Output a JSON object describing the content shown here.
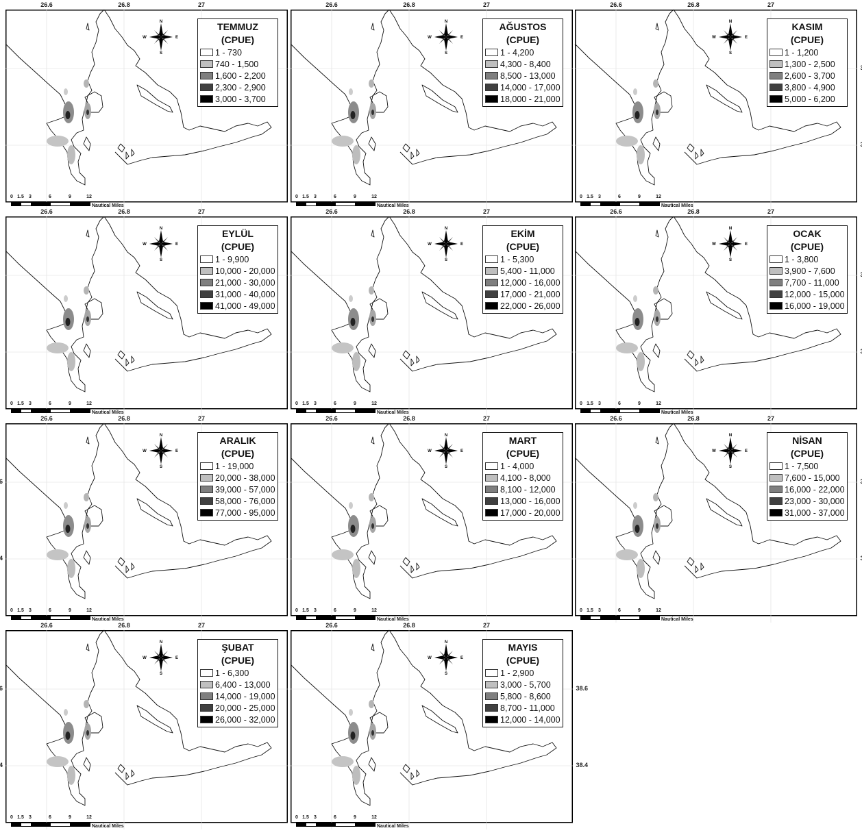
{
  "axes": {
    "lon_ticks": [
      "26.6",
      "26.8",
      "27"
    ],
    "lat_ticks": [
      "38.6",
      "38.4"
    ],
    "left_partial_ticks": [
      "6",
      "4"
    ]
  },
  "compass": {
    "n": "N",
    "s": "S",
    "e": "E",
    "w": "W"
  },
  "scale": {
    "ticks": [
      "0",
      "1.5",
      "3",
      "6",
      "9",
      "12"
    ],
    "unit": "Nautical Miles"
  },
  "legend_colors": [
    "#ffffff",
    "#bfbfbf",
    "#7f7f7f",
    "#404040",
    "#000000"
  ],
  "panels": [
    {
      "month": "TEMMUZ",
      "measure": "(CPUE)",
      "classes": [
        "1 - 730",
        "740 - 1,500",
        "1,600 - 2,200",
        "2,300 - 2,900",
        "3,000 - 3,700"
      ],
      "show_left_ticks": false
    },
    {
      "month": "AĞUSTOS",
      "measure": "(CPUE)",
      "classes": [
        "1 - 4,200",
        "4,300 - 8,400",
        "8,500 - 13,000",
        "14,000 - 17,000",
        "18,000 - 21,000"
      ],
      "show_left_ticks": false
    },
    {
      "month": "KASIM",
      "measure": "(CPUE)",
      "classes": [
        "1 - 1,200",
        "1,300 - 2,500",
        "2,600 - 3,700",
        "3,800 - 4,900",
        "5,000 - 6,200"
      ],
      "show_left_ticks": false
    },
    {
      "month": "EYLÜL",
      "measure": "(CPUE)",
      "classes": [
        "1 - 9,900",
        "10,000 - 20,000",
        "21,000 - 30,000",
        "31,000 - 40,000",
        "41,000 - 49,000"
      ],
      "show_left_ticks": false
    },
    {
      "month": "EKİM",
      "measure": "(CPUE)",
      "classes": [
        "1 - 5,300",
        "5,400 - 11,000",
        "12,000 - 16,000",
        "17,000 - 21,000",
        "22,000 - 26,000"
      ],
      "show_left_ticks": false
    },
    {
      "month": "OCAK",
      "measure": "(CPUE)",
      "classes": [
        "1 - 3,800",
        "3,900 - 7,600",
        "7,700 - 11,000",
        "12,000 - 15,000",
        "16,000 - 19,000"
      ],
      "show_left_ticks": false
    },
    {
      "month": "ARALIK",
      "measure": "(CPUE)",
      "classes": [
        "1 - 19,000",
        "20,000 - 38,000",
        "39,000 - 57,000",
        "58,000 - 76,000",
        "77,000 - 95,000"
      ],
      "show_left_ticks": true
    },
    {
      "month": "MART",
      "measure": "(CPUE)",
      "classes": [
        "1 - 4,000",
        "4,100 - 8,000",
        "8,100 - 12,000",
        "13,000 - 16,000",
        "17,000 - 20,000"
      ],
      "show_left_ticks": false
    },
    {
      "month": "NİSAN",
      "measure": "(CPUE)",
      "classes": [
        "1 - 7,500",
        "7,600 - 15,000",
        "16,000 - 22,000",
        "23,000 - 30,000",
        "31,000 - 37,000"
      ],
      "show_left_ticks": false
    },
    {
      "month": "ŞUBAT",
      "measure": "(CPUE)",
      "classes": [
        "1 - 6,300",
        "6,400 - 13,000",
        "14,000 - 19,000",
        "20,000 - 25,000",
        "26,000 - 32,000"
      ],
      "show_left_ticks": true
    },
    {
      "month": "MAYIS",
      "measure": "(CPUE)",
      "classes": [
        "1 - 2,900",
        "3,000 - 5,700",
        "5,800 - 8,600",
        "8,700 - 11,000",
        "12,000 - 14,000"
      ],
      "show_left_ticks": false
    }
  ]
}
